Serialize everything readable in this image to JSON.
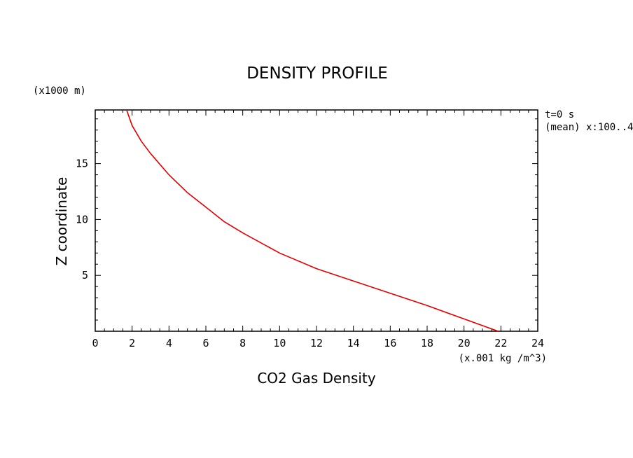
{
  "chart_data": {
    "type": "line",
    "title": "DENSITY PROFILE",
    "xlabel": "CO2 Gas Density",
    "ylabel": "Z coordinate",
    "x_units": "(x.001 kg /m^3)",
    "y_units": "(x1000 m)",
    "xlim": [
      0,
      24
    ],
    "ylim": [
      0,
      19.8
    ],
    "x_ticks": [
      0,
      2,
      4,
      6,
      8,
      10,
      12,
      14,
      16,
      18,
      20,
      22,
      24
    ],
    "y_ticks": [
      5,
      10,
      15
    ],
    "grid": false,
    "annotation_lines": [
      "t=0 s",
      "(mean) x:100..4"
    ],
    "series": [
      {
        "color": "#e00000",
        "x": [
          21.85,
          20.0,
          18.0,
          16.0,
          14.0,
          12.0,
          10.0,
          8.0,
          7.0,
          6.0,
          5.0,
          4.0,
          3.0,
          2.5,
          2.0,
          1.7
        ],
        "y": [
          0.0,
          1.1,
          2.3,
          3.4,
          4.5,
          5.6,
          7.0,
          8.8,
          9.8,
          11.1,
          12.4,
          14.0,
          15.9,
          17.0,
          18.4,
          19.8
        ]
      }
    ]
  }
}
